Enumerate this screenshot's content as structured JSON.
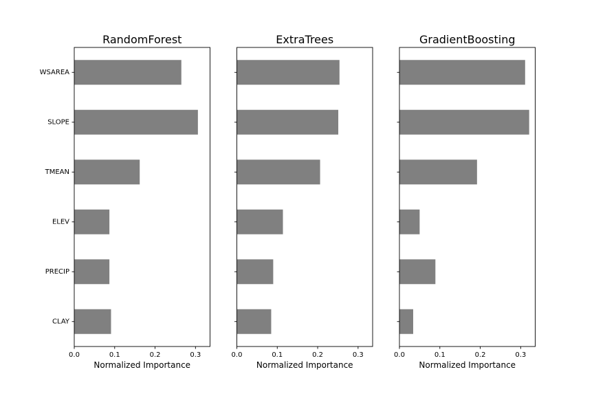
{
  "chart_data": [
    {
      "type": "bar",
      "orientation": "horizontal",
      "title": "RandomForest",
      "xlabel": "Normalized Importance",
      "ylabel": "",
      "categories": [
        "WSAREA",
        "SLOPE",
        "TMEAN",
        "ELEV",
        "PRECIP",
        "CLAY"
      ],
      "values": [
        0.265,
        0.306,
        0.162,
        0.087,
        0.087,
        0.091
      ],
      "xlim": [
        0,
        0.336
      ],
      "xticks": [
        "0.0",
        "0.1",
        "0.2",
        "0.3"
      ],
      "bar_color": "#808080",
      "show_category_labels": true,
      "grid": false
    },
    {
      "type": "bar",
      "orientation": "horizontal",
      "title": "ExtraTrees",
      "xlabel": "Normalized Importance",
      "ylabel": "",
      "categories": [
        "WSAREA",
        "SLOPE",
        "TMEAN",
        "ELEV",
        "PRECIP",
        "CLAY"
      ],
      "values": [
        0.254,
        0.251,
        0.206,
        0.114,
        0.09,
        0.085
      ],
      "xlim": [
        0,
        0.336
      ],
      "xticks": [
        "0.0",
        "0.1",
        "0.2",
        "0.3"
      ],
      "bar_color": "#808080",
      "show_category_labels": false,
      "grid": false
    },
    {
      "type": "bar",
      "orientation": "horizontal",
      "title": "GradientBoosting",
      "xlabel": "Normalized Importance",
      "ylabel": "",
      "categories": [
        "WSAREA",
        "SLOPE",
        "TMEAN",
        "ELEV",
        "PRECIP",
        "CLAY"
      ],
      "values": [
        0.311,
        0.321,
        0.192,
        0.05,
        0.089,
        0.034
      ],
      "xlim": [
        0,
        0.336
      ],
      "xticks": [
        "0.0",
        "0.1",
        "0.2",
        "0.3"
      ],
      "bar_color": "#808080",
      "show_category_labels": false,
      "grid": false
    }
  ]
}
